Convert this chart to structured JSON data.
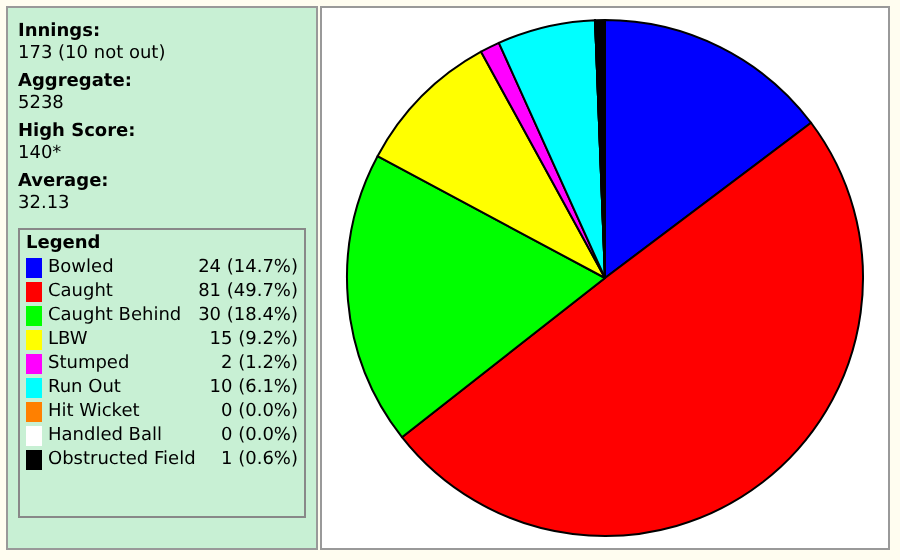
{
  "chart_data": {
    "type": "pie",
    "annotations": [
      "Innings:",
      "173 (10 not out)",
      "Aggregate:",
      "5238",
      "High Score:",
      "140*",
      "Average:",
      "32.13"
    ],
    "legend_title": "Legend",
    "legend": "left",
    "categories": [
      "Bowled",
      "Caught",
      "Caught Behind",
      "LBW",
      "Stumped",
      "Run Out",
      "Hit Wicket",
      "Handled Ball",
      "Obstructed Field"
    ],
    "values": [
      24,
      81,
      30,
      15,
      2,
      10,
      0,
      0,
      1
    ],
    "value_labels": [
      "24 (14.7%)",
      "81 (49.7%)",
      "30 (18.4%)",
      "15 (9.2%)",
      "2 (1.2%)",
      "10 (6.1%)",
      "0 (0.0%)",
      "0 (0.0%)",
      "1 (0.6%)"
    ],
    "colors": [
      "#0000ff",
      "#ff0000",
      "#00ff00",
      "#ffff00",
      "#ff00ff",
      "#00ffff",
      "#ff8000",
      "#ffffff",
      "#000000"
    ]
  }
}
